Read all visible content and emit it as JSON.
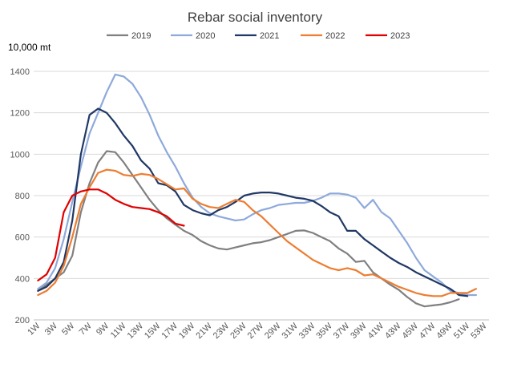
{
  "chart_data": {
    "type": "line",
    "title": "Rebar social inventory",
    "unit_label": "10,000 mt",
    "xlabel": "",
    "ylabel": "",
    "ylim": [
      200,
      1400
    ],
    "y_ticks": [
      200,
      400,
      600,
      800,
      1000,
      1200,
      1400
    ],
    "x_tick_labels": [
      "1W",
      "3W",
      "5W",
      "7W",
      "9W",
      "11W",
      "13W",
      "15W",
      "17W",
      "19W",
      "21W",
      "23W",
      "25W",
      "27W",
      "29W",
      "31W",
      "33W",
      "35W",
      "37W",
      "39W",
      "41W",
      "43W",
      "45W",
      "47W",
      "49W",
      "51W",
      "53W"
    ],
    "grid": "horizontal",
    "legend_position": "top",
    "series": [
      {
        "name": "2019",
        "color": "#808080",
        "values": [
          340,
          370,
          400,
          430,
          510,
          720,
          860,
          960,
          1015,
          1010,
          960,
          900,
          840,
          780,
          730,
          690,
          660,
          630,
          610,
          580,
          560,
          545,
          540,
          550,
          560,
          570,
          575,
          585,
          600,
          615,
          630,
          632,
          620,
          600,
          580,
          545,
          520,
          480,
          485,
          430,
          400,
          370,
          345,
          310,
          280,
          265,
          270,
          275,
          285,
          300
        ]
      },
      {
        "name": "2020",
        "color": "#8EA9DB",
        "values": [
          350,
          380,
          450,
          590,
          770,
          940,
          1100,
          1200,
          1300,
          1385,
          1375,
          1340,
          1275,
          1190,
          1090,
          1010,
          940,
          860,
          790,
          745,
          715,
          700,
          690,
          680,
          685,
          710,
          730,
          740,
          755,
          760,
          765,
          765,
          775,
          790,
          810,
          810,
          805,
          790,
          740,
          780,
          720,
          690,
          630,
          570,
          500,
          440,
          410,
          380,
          340,
          330,
          320,
          320
        ]
      },
      {
        "name": "2021",
        "color": "#203864",
        "values": [
          340,
          360,
          400,
          480,
          680,
          1000,
          1190,
          1220,
          1200,
          1150,
          1090,
          1040,
          970,
          930,
          860,
          850,
          820,
          755,
          730,
          715,
          705,
          730,
          745,
          770,
          800,
          810,
          815,
          815,
          810,
          800,
          790,
          785,
          775,
          750,
          720,
          700,
          630,
          630,
          590,
          560,
          530,
          500,
          475,
          455,
          430,
          410,
          390,
          370,
          350,
          320,
          315
        ]
      },
      {
        "name": "2022",
        "color": "#ED7D31",
        "values": [
          320,
          340,
          380,
          460,
          600,
          760,
          840,
          910,
          925,
          920,
          900,
          895,
          905,
          900,
          880,
          855,
          830,
          835,
          785,
          760,
          745,
          740,
          760,
          780,
          770,
          730,
          700,
          660,
          620,
          580,
          550,
          520,
          490,
          470,
          450,
          440,
          450,
          440,
          415,
          420,
          400,
          380,
          360,
          345,
          330,
          320,
          315,
          315,
          330,
          330,
          330,
          350
        ]
      },
      {
        "name": "2023",
        "color": "#E00000",
        "values": [
          390,
          420,
          500,
          720,
          800,
          820,
          830,
          830,
          810,
          780,
          760,
          745,
          740,
          735,
          720,
          700,
          665,
          655
        ]
      }
    ]
  }
}
